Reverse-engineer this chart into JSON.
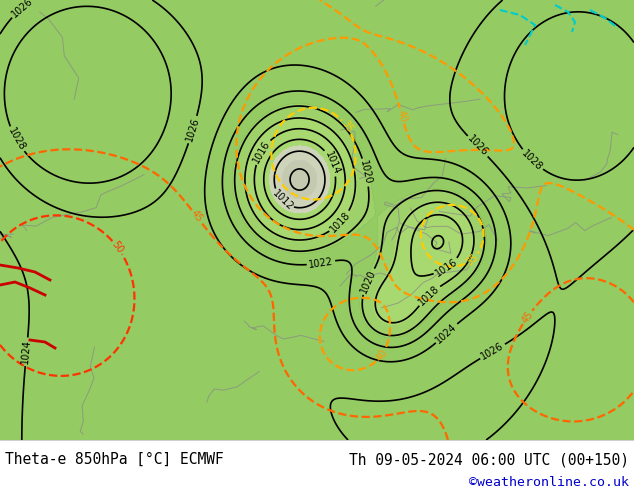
{
  "title_left": "Theta-e 850hPa [°C] ECMWF",
  "title_right": "Th 09-05-2024 06:00 UTC (00+150)",
  "credit": "©weatheronline.co.uk",
  "footer_bg": "#ffffff",
  "text_color": "#000000",
  "credit_color": "#0000cc",
  "figsize": [
    6.34,
    4.9
  ],
  "dpi": 100,
  "map_green": "#a8d870",
  "map_grey": "#c8c8c8",
  "pressure_color": "#000000",
  "theta_colors": {
    "22": "#ffee00",
    "25": "#ccdd00",
    "30": "#88cc00",
    "35": "#ffcc00",
    "40": "#ff9900",
    "45": "#ff6600",
    "50": "#ff4400"
  }
}
